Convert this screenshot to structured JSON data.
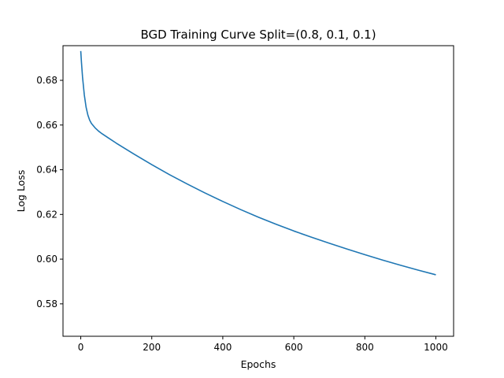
{
  "chart_data": {
    "type": "line",
    "title": "BGD Training Curve Split=(0.8, 0.1, 0.1)",
    "xlabel": "Epochs",
    "ylabel": "Log Loss",
    "xlim": [
      -50,
      1050
    ],
    "ylim": [
      0.5655,
      0.6955
    ],
    "xticks": [
      0,
      200,
      400,
      600,
      800,
      1000
    ],
    "yticks": [
      0.58,
      0.6,
      0.62,
      0.64,
      0.66,
      0.68
    ],
    "xtick_labels": [
      "0",
      "200",
      "400",
      "600",
      "800",
      "1000"
    ],
    "ytick_labels": [
      "0.58",
      "0.60",
      "0.62",
      "0.64",
      "0.66",
      "0.68"
    ],
    "grid": false,
    "series": [
      {
        "color": "#1f77b4",
        "x": [
          0,
          2,
          5,
          10,
          15,
          20,
          25,
          30,
          40,
          50,
          60,
          80,
          100,
          150,
          200,
          250,
          300,
          350,
          400,
          450,
          500,
          550,
          600,
          650,
          700,
          750,
          800,
          850,
          900,
          950,
          1000
        ],
        "y": [
          0.6931,
          0.688,
          0.6815,
          0.6735,
          0.668,
          0.6645,
          0.6622,
          0.6607,
          0.6588,
          0.6573,
          0.6561,
          0.654,
          0.6519,
          0.647,
          0.6423,
          0.6378,
          0.6336,
          0.6296,
          0.6258,
          0.6222,
          0.6188,
          0.6156,
          0.6126,
          0.6098,
          0.6071,
          0.6045,
          0.602,
          0.5996,
          0.5973,
          0.5951,
          0.593
        ]
      }
    ]
  }
}
